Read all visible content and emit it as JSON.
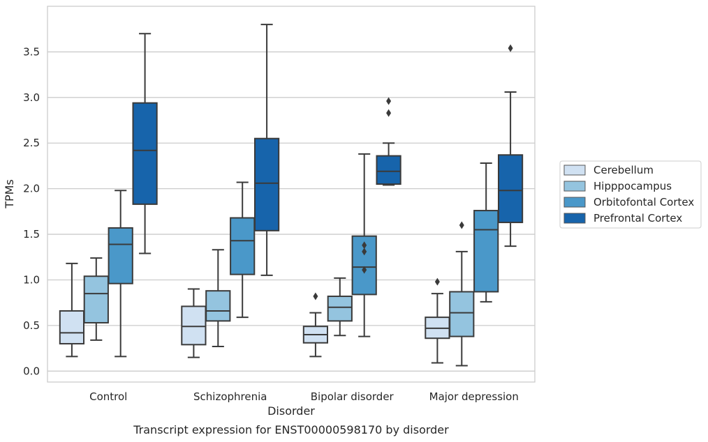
{
  "chart_data": {
    "type": "box",
    "title": "",
    "caption": "Transcript expression for ENST00000598170 by disorder",
    "xlabel": "Disorder",
    "ylabel": "TPMs",
    "ylim": [
      -0.12,
      4.0
    ],
    "yticks": [
      "0.0",
      "0.5",
      "1.0",
      "1.5",
      "2.0",
      "2.5",
      "3.0",
      "3.5"
    ],
    "grid": "horizontal",
    "legend_position": "right",
    "categories": [
      "Control",
      "Schizophrenia",
      "Bipolar disorder",
      "Major depression"
    ],
    "series": [
      {
        "name": "Cerebellum",
        "color": "#d0e1f2",
        "boxes": [
          {
            "whislo": 0.16,
            "q1": 0.3,
            "med": 0.42,
            "q3": 0.66,
            "whishi": 1.18,
            "fliers": []
          },
          {
            "whislo": 0.15,
            "q1": 0.29,
            "med": 0.49,
            "q3": 0.71,
            "whishi": 0.9,
            "fliers": []
          },
          {
            "whislo": 0.16,
            "q1": 0.31,
            "med": 0.4,
            "q3": 0.49,
            "whishi": 0.64,
            "fliers": [
              0.82
            ]
          },
          {
            "whislo": 0.09,
            "q1": 0.36,
            "med": 0.47,
            "q3": 0.59,
            "whishi": 0.85,
            "fliers": [
              0.98
            ]
          }
        ]
      },
      {
        "name": "Hipppocampus",
        "color": "#94c4df",
        "boxes": [
          {
            "whislo": 0.34,
            "q1": 0.53,
            "med": 0.85,
            "q3": 1.04,
            "whishi": 1.24,
            "fliers": []
          },
          {
            "whislo": 0.27,
            "q1": 0.55,
            "med": 0.66,
            "q3": 0.88,
            "whishi": 1.33,
            "fliers": []
          },
          {
            "whislo": 0.39,
            "q1": 0.55,
            "med": 0.7,
            "q3": 0.82,
            "whishi": 1.02,
            "fliers": []
          },
          {
            "whislo": 0.06,
            "q1": 0.38,
            "med": 0.64,
            "q3": 0.87,
            "whishi": 1.31,
            "fliers": [
              1.6
            ]
          }
        ]
      },
      {
        "name": "Orbitofontal Cortex",
        "color": "#4a98c9",
        "boxes": [
          {
            "whislo": 0.16,
            "q1": 0.96,
            "med": 1.39,
            "q3": 1.57,
            "whishi": 1.98,
            "fliers": []
          },
          {
            "whislo": 0.59,
            "q1": 1.06,
            "med": 1.43,
            "q3": 1.68,
            "whishi": 2.07,
            "fliers": []
          },
          {
            "whislo": 0.38,
            "q1": 0.84,
            "med": 1.14,
            "q3": 1.48,
            "whishi": 2.38,
            "fliers": [
              1.11,
              1.31,
              1.38
            ]
          },
          {
            "whislo": 0.76,
            "q1": 0.87,
            "med": 1.55,
            "q3": 1.76,
            "whishi": 2.28,
            "fliers": []
          }
        ]
      },
      {
        "name": "Prefrontal Cortex",
        "color": "#1764ab",
        "boxes": [
          {
            "whislo": 1.29,
            "q1": 1.83,
            "med": 2.42,
            "q3": 2.94,
            "whishi": 3.7,
            "fliers": []
          },
          {
            "whislo": 1.05,
            "q1": 1.54,
            "med": 2.06,
            "q3": 2.55,
            "whishi": 3.8,
            "fliers": []
          },
          {
            "whislo": 2.04,
            "q1": 2.05,
            "med": 2.19,
            "q3": 2.36,
            "whishi": 2.5,
            "fliers": [
              2.83,
              2.96
            ]
          },
          {
            "whislo": 1.37,
            "q1": 1.63,
            "med": 1.98,
            "q3": 2.37,
            "whishi": 3.06,
            "fliers": [
              3.54
            ]
          }
        ]
      }
    ]
  }
}
